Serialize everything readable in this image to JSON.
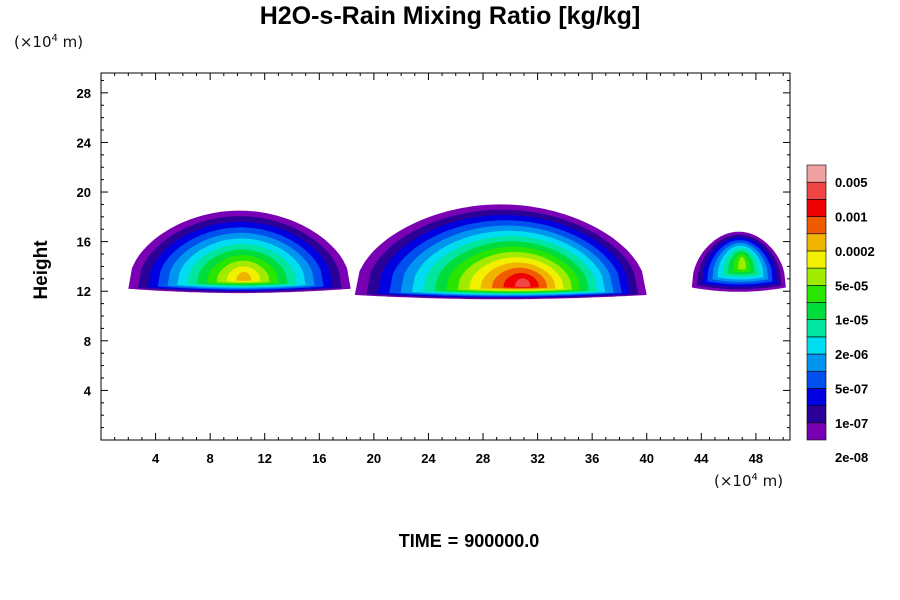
{
  "chart_data": {
    "type": "heatmap",
    "title": "H2O-s-Rain Mixing Ratio [kg/kg]",
    "ylabel": "Height",
    "y_unit": {
      "prefix": "(×10",
      "exponent": "4",
      "suffix": " m)"
    },
    "x_unit": {
      "prefix": "(×10",
      "exponent": "4",
      "suffix": " m)"
    },
    "x_ticks": [
      "4",
      "8",
      "12",
      "16",
      "20",
      "24",
      "28",
      "32",
      "36",
      "40",
      "44",
      "48"
    ],
    "y_ticks": [
      "4",
      "8",
      "12",
      "16",
      "20",
      "24",
      "28"
    ],
    "xlim": [
      0,
      50.5
    ],
    "ylim": [
      0,
      29.6
    ],
    "time_label": "TIME",
    "time_value": "900000.0",
    "legend": {
      "labels": [
        "0.005",
        "0.001",
        "0.0002",
        "5e-05",
        "1e-05",
        "2e-06",
        "5e-07",
        "1e-07",
        "2e-08"
      ],
      "colors": [
        "#7a00b4",
        "#2a0096",
        "#0000e0",
        "#0050f0",
        "#0096f0",
        "#00dcf0",
        "#00e6a0",
        "#00dc3c",
        "#28e600",
        "#a0eb00",
        "#f0f000",
        "#f0b400",
        "#f05a00",
        "#f00000",
        "#f04646",
        "#f0a0a0"
      ]
    },
    "clouds": [
      {
        "x": [
          2.0,
          18.3
        ],
        "base": 12.2,
        "top": 18.5,
        "max_level": 11,
        "core": [
          10.5,
          13.2
        ]
      },
      {
        "x": [
          18.6,
          40.0
        ],
        "base": 11.7,
        "top": 19.0,
        "max_level": 14,
        "core": [
          31.0,
          12.7
        ]
      },
      {
        "x": [
          43.3,
          50.2
        ],
        "base": 12.3,
        "top": 16.8,
        "max_level": 9,
        "core": [
          47.0,
          14.6
        ]
      }
    ]
  }
}
